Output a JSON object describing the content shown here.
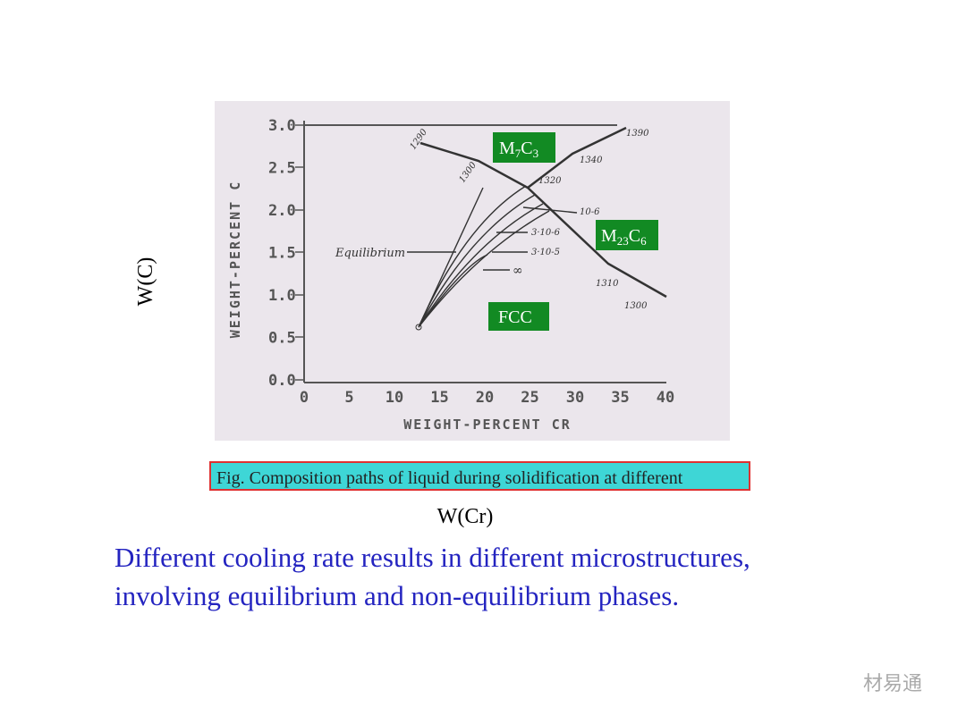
{
  "figure": {
    "y_axis_label": "WEIGHT-PERCENT C",
    "x_axis_label": "WEIGHT-PERCENT CR",
    "y_ticks": [
      "3.0",
      "2.5",
      "2.0",
      "1.5",
      "1.0",
      "0.5",
      "0.0"
    ],
    "x_ticks": [
      "0",
      "5",
      "10",
      "15",
      "20",
      "25",
      "30",
      "35",
      "40"
    ],
    "phases": [
      [
        "M",
        "7",
        "C",
        "3"
      ],
      [
        "M",
        "23",
        "C",
        "6"
      ],
      [
        "FCC"
      ]
    ],
    "path_labels": [
      "Equilibrium",
      "10-6",
      "3·10-6",
      "3·10-5",
      "∞"
    ],
    "temperatures": [
      "1290",
      "1300",
      "1320",
      "1340",
      "1390",
      "1310",
      "1300"
    ],
    "caption": "Fig. Composition paths of liquid during solidification at different"
  },
  "axis_notes": {
    "vertical": "W(C)",
    "horizontal": "W(Cr)"
  },
  "body": {
    "lines": [
      "Different cooling rate results in different microstructures,",
      "involving equilibrium and non-equilibrium phases."
    ]
  },
  "watermark": "材易通"
}
